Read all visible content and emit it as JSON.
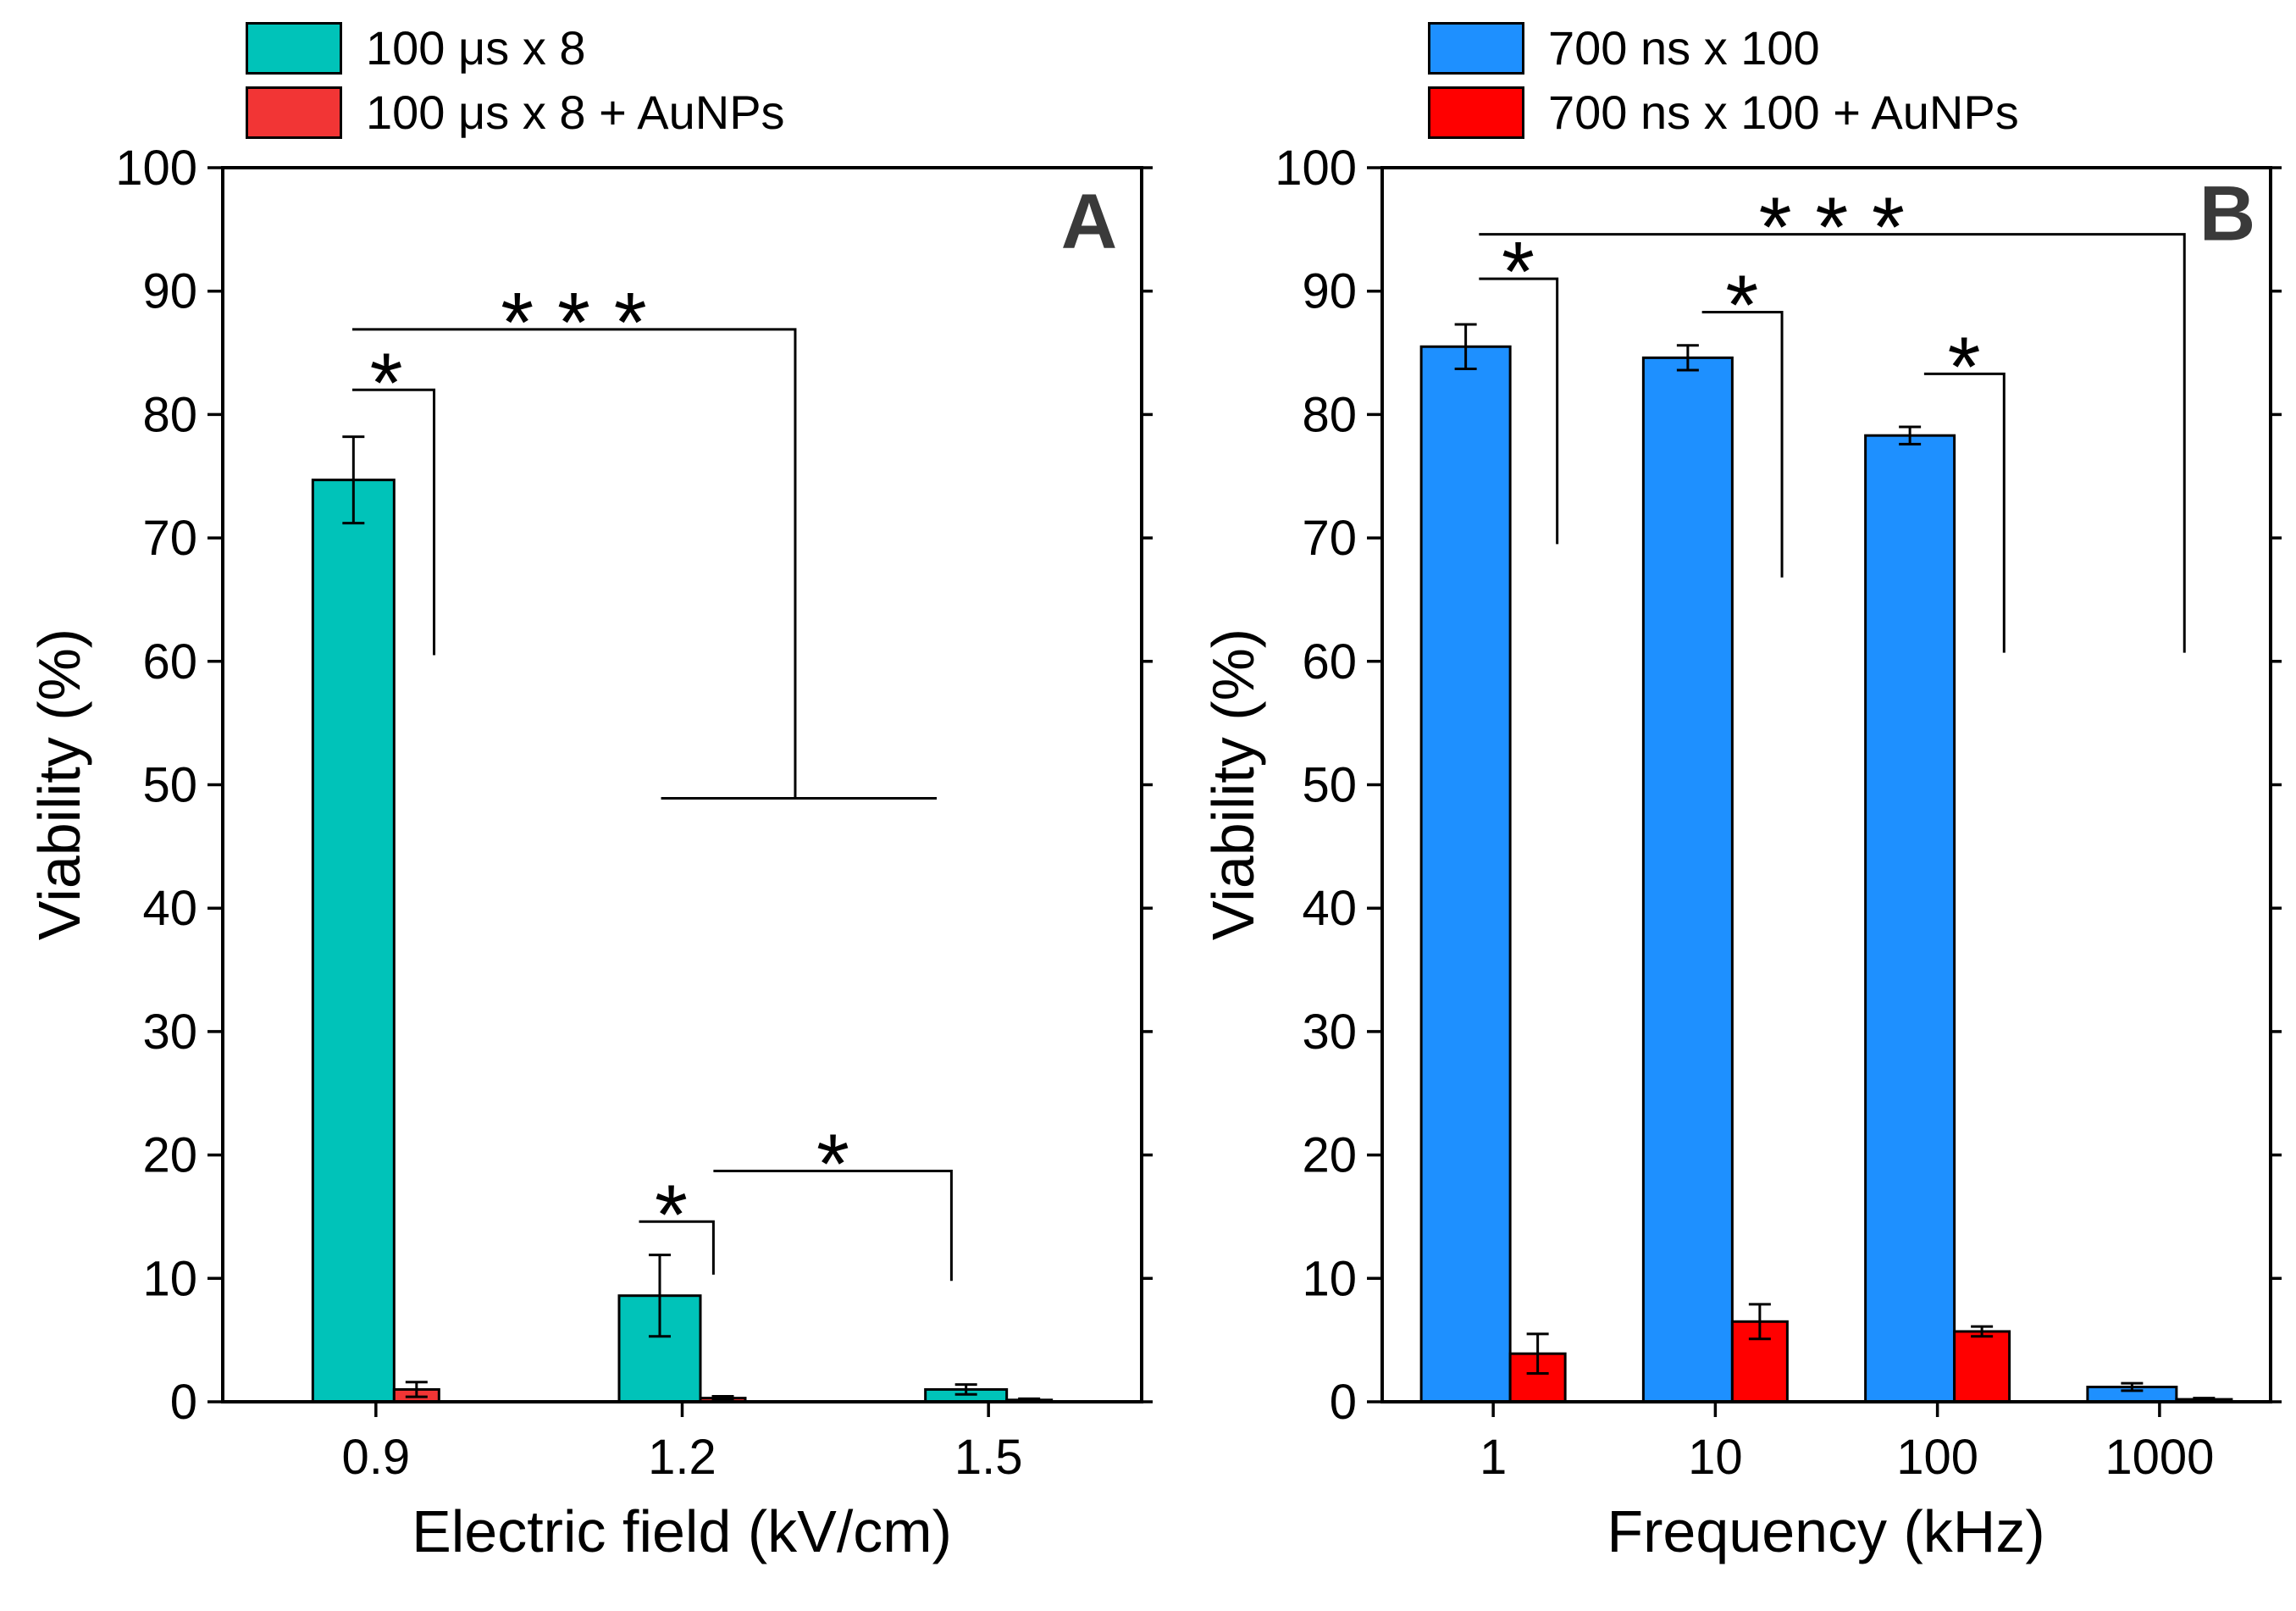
{
  "figure": {
    "background": "#ffffff"
  },
  "chart_data": [
    {
      "type": "bar",
      "panel_label": "A",
      "title": "",
      "xlabel": "Electric field (kV/cm)",
      "ylabel": "Viability (%)",
      "ylim": [
        0,
        100
      ],
      "yticks": [
        0,
        10,
        20,
        30,
        40,
        50,
        60,
        70,
        80,
        90,
        100
      ],
      "categories": [
        "0.9",
        "1.2",
        "1.5"
      ],
      "legend_position": "top-left",
      "grid": false,
      "series": [
        {
          "name": "100 μs x 8",
          "color": "#00C3B9",
          "values": [
            74.7,
            8.6,
            1.0
          ],
          "errors": [
            3.5,
            3.3,
            0.4
          ]
        },
        {
          "name": "100 μs x 8 + AuNPs",
          "color": "#F23535",
          "values": [
            1.0,
            0.3,
            0.15
          ],
          "errors": [
            0.6,
            0.15,
            0.1
          ]
        }
      ],
      "significance": [
        {
          "label": "*",
          "label_x": 0.178,
          "label_y": 82,
          "segments": [
            [
              [
                0.141,
                82
              ],
              [
                0.23,
                82
              ],
              [
                0.23,
                60.5
              ]
            ]
          ]
        },
        {
          "label": "* * *",
          "label_x": 0.382,
          "label_y": 86.9,
          "segments": [
            [
              [
                0.141,
                86.9
              ],
              [
                0.623,
                86.9
              ],
              [
                0.623,
                48.9
              ]
            ],
            [
              [
                0.477,
                48.9
              ],
              [
                0.777,
                48.9
              ]
            ]
          ]
        },
        {
          "label": "*",
          "label_x": 0.488,
          "label_y": 14.6,
          "segments": [
            [
              [
                0.453,
                14.6
              ],
              [
                0.534,
                14.6
              ],
              [
                0.534,
                10.3
              ]
            ]
          ]
        },
        {
          "label": "*",
          "label_x": 0.664,
          "label_y": 18.7,
          "segments": [
            [
              [
                0.534,
                18.7
              ],
              [
                0.793,
                18.7
              ],
              [
                0.793,
                9.8
              ]
            ]
          ]
        }
      ]
    },
    {
      "type": "bar",
      "panel_label": "B",
      "title": "",
      "xlabel": "Frequency (kHz)",
      "ylabel": "Viability (%)",
      "ylim": [
        0,
        100
      ],
      "yticks": [
        0,
        10,
        20,
        30,
        40,
        50,
        60,
        70,
        80,
        90,
        100
      ],
      "categories": [
        "1",
        "10",
        "100",
        "1000"
      ],
      "legend_position": "top-left",
      "grid": false,
      "series": [
        {
          "name": "700 ns x 100",
          "color": "#1E90FF",
          "values": [
            85.5,
            84.6,
            78.3,
            1.2
          ],
          "errors": [
            1.8,
            1.0,
            0.7,
            0.3
          ]
        },
        {
          "name": "700 ns x 100 + AuNPs",
          "color": "#FF0000",
          "values": [
            3.9,
            6.5,
            5.7,
            0.2
          ],
          "errors": [
            1.6,
            1.4,
            0.4,
            0.1
          ]
        }
      ],
      "significance": [
        {
          "label": "*",
          "label_x": 0.153,
          "label_y": 91,
          "segments": [
            [
              [
                0.109,
                91
              ],
              [
                0.197,
                91
              ],
              [
                0.197,
                69.5
              ]
            ]
          ]
        },
        {
          "label": "*",
          "label_x": 0.405,
          "label_y": 88.3,
          "segments": [
            [
              [
                0.36,
                88.3
              ],
              [
                0.45,
                88.3
              ],
              [
                0.45,
                66.8
              ]
            ]
          ]
        },
        {
          "label": "*",
          "label_x": 0.655,
          "label_y": 83.3,
          "segments": [
            [
              [
                0.61,
                83.3
              ],
              [
                0.7,
                83.3
              ],
              [
                0.7,
                60.7
              ]
            ]
          ]
        },
        {
          "label": "* * *",
          "label_x": 0.506,
          "label_y": 94.6,
          "segments": [
            [
              [
                0.109,
                94.6
              ],
              [
                0.903,
                94.6
              ],
              [
                0.903,
                60.7
              ]
            ]
          ]
        }
      ]
    }
  ]
}
